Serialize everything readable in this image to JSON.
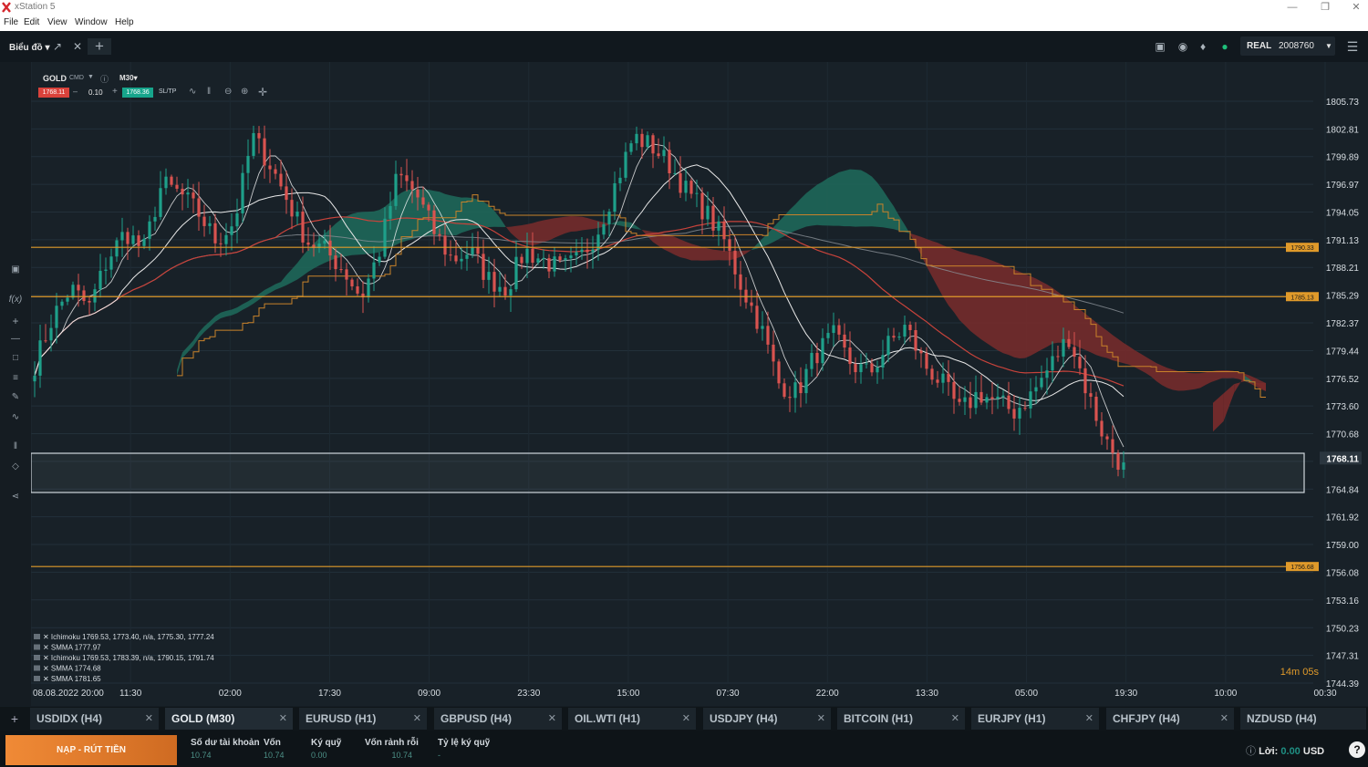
{
  "app": {
    "title": "xStation 5"
  },
  "menu": [
    "File",
    "Edit",
    "View",
    "Window",
    "Help"
  ],
  "toolbar": {
    "chart_menu": "Biểu đồ",
    "account_type": "REAL",
    "account_number": "2008760"
  },
  "chart_header": {
    "symbol": "GOLD",
    "type": "CMD",
    "timeframe": "M30",
    "sell_price": "1768.11",
    "volume": "0.10",
    "buy_price": "1768.36",
    "sltp": "SL/TP"
  },
  "colors": {
    "background": "#182128",
    "bull": "#1ea08a",
    "bear": "#d9534f",
    "cloud_bull": "#1f6b5c",
    "cloud_bear": "#7a2b2b",
    "level": "#e09a2a",
    "price_box": "#cfd6dc"
  },
  "chart_data": {
    "type": "candlestick",
    "symbol": "GOLD",
    "timeframe": "M30",
    "ylim": [
      1744.39,
      1807.0
    ],
    "y_ticks": [
      1805.73,
      1802.81,
      1799.89,
      1796.97,
      1794.05,
      1791.13,
      1788.21,
      1785.29,
      1782.37,
      1779.44,
      1776.52,
      1773.6,
      1770.68,
      1767.76,
      1764.84,
      1761.92,
      1759.0,
      1756.08,
      1753.16,
      1750.23,
      1747.31,
      1744.39
    ],
    "x_ticks": [
      "08.08.2022 20:00",
      "11:30",
      "02:00",
      "17:30",
      "09:00",
      "23:30",
      "15:00",
      "07:30",
      "22:00",
      "13:30",
      "05:00",
      "19:30",
      "10:00",
      "00:30"
    ],
    "current_price": 1768.11,
    "levels": [
      {
        "label": "1790.33",
        "value": 1790.33
      },
      {
        "label": "1785.13",
        "value": 1785.13
      },
      {
        "label": "1756.68",
        "value": 1756.68
      }
    ],
    "price_path": [
      1778,
      1783,
      1786,
      1784,
      1789,
      1792,
      1790,
      1797,
      1796,
      1794,
      1791,
      1793,
      1802,
      1799,
      1795,
      1791,
      1790,
      1788,
      1785,
      1790,
      1798,
      1796,
      1792,
      1789,
      1790,
      1787,
      1786,
      1790,
      1789,
      1788,
      1789,
      1792,
      1797,
      1802,
      1801,
      1799,
      1796,
      1794,
      1791,
      1786,
      1782,
      1776,
      1775,
      1779,
      1781,
      1778,
      1777,
      1780,
      1782,
      1778,
      1776,
      1773,
      1775,
      1774,
      1773,
      1775,
      1778,
      1781,
      1775,
      1770,
      1767
    ],
    "forecast_cloud_tail": [
      1776.0,
      1776.8,
      1775.0,
      1772.0,
      1770.9
    ],
    "indicators": [
      "Ichimoku 1769.53, 1773.40, n/a, 1775.30, 1777.24",
      "SMMA 1777.97",
      "Ichimoku 1769.53, 1783.39, n/a, 1790.15, 1791.74",
      "SMMA 1774.68",
      "SMMA 1781.65"
    ],
    "countdown": "14m 05s"
  },
  "tabs": [
    {
      "label": "USDIDX (H4)"
    },
    {
      "label": "GOLD (M30)"
    },
    {
      "label": "EURUSD (H1)"
    },
    {
      "label": "GBPUSD (H4)"
    },
    {
      "label": "OIL.WTI (H1)"
    },
    {
      "label": "USDJPY (H4)"
    },
    {
      "label": "BITCOIN (H1)"
    },
    {
      "label": "EURJPY (H1)"
    },
    {
      "label": "CHFJPY (H4)"
    },
    {
      "label": "NZDUSD (H4)"
    }
  ],
  "bottom": {
    "deposit_label": "NẠP - RÚT TIỀN",
    "stats": [
      {
        "label": "Số dư tài khoản",
        "value": "10.74"
      },
      {
        "label": "Vốn",
        "value": "10.74"
      },
      {
        "label": "Ký quỹ",
        "value": "0.00"
      },
      {
        "label": "Vốn rảnh rỗi",
        "value": "10.74"
      },
      {
        "label": "Tỷ lệ ký quỹ",
        "value": "-"
      }
    ],
    "profit_label": "Lời:",
    "profit_value": "0.00",
    "currency": "USD"
  }
}
